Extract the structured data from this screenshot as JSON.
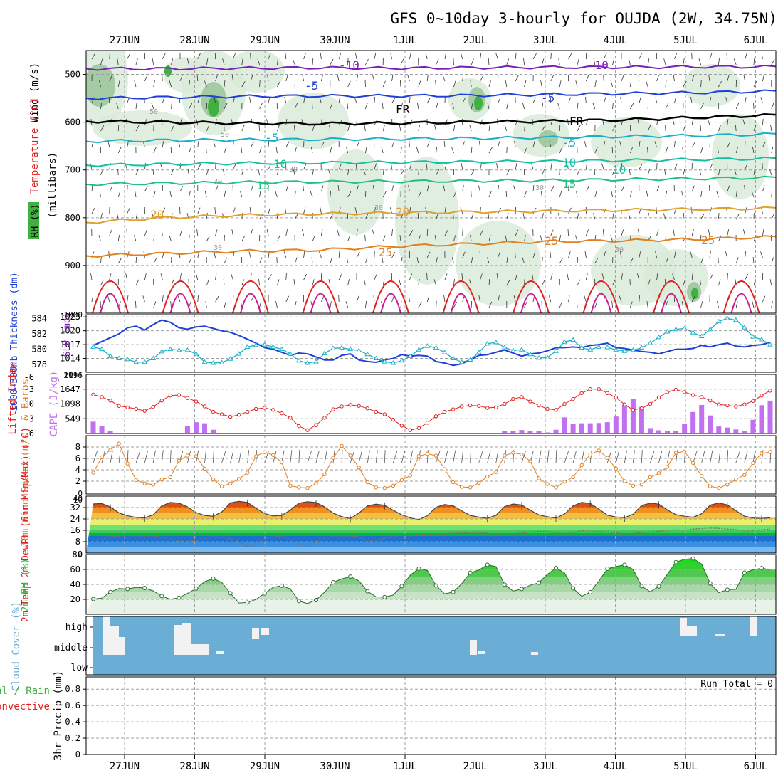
{
  "title": "GFS 0~10day 3-hourly for OUJDA (2W, 34.75N)",
  "dates": [
    "27JUN",
    "28JUN",
    "29JUN",
    "30JUN",
    "1JUL",
    "2JUL",
    "3JUL",
    "4JUL",
    "5JUL",
    "6JUL"
  ],
  "colors": {
    "axis": "#000000",
    "grid": "#a0a0a0",
    "purple": "#7a1fb4",
    "blue": "#1e3fd8",
    "cyan": "#1ab0c8",
    "teal": "#14c0a0",
    "orange": "#e08020",
    "red": "#e02020",
    "magenta": "#d01890",
    "gold": "#e0a030",
    "rhGreen": "#40b040",
    "sky": "#6aaed6",
    "cape": "#c070f0"
  },
  "chart_data": [
    {
      "type": "line",
      "panel": "upper-air",
      "ylabel_wind": "Wind (m/s)",
      "ylabel_temp": "Temperature (°C)",
      "ylabel_rh": "RH (%)",
      "ylabel_p": "(millibars)",
      "yticks": [
        500,
        600,
        700,
        800,
        900
      ],
      "ylim": [
        1000,
        450
      ],
      "contour_labels": [
        "-10",
        "-10",
        "-5",
        "-5",
        "FR",
        "FR",
        "-5",
        "-5",
        "10",
        "10",
        "10",
        "15",
        "15",
        "20",
        "20",
        "25",
        "25",
        "25",
        "30",
        "30",
        "30",
        "30",
        "30",
        "50",
        "50",
        "50",
        "30"
      ],
      "isotherms": [
        {
          "name": "-10",
          "p": [
            488,
            488,
            487,
            486,
            487,
            486,
            485,
            485,
            484,
            484
          ]
        },
        {
          "name": "-5",
          "p": [
            550,
            548,
            546,
            545,
            545,
            544,
            542,
            540,
            538,
            535
          ]
        },
        {
          "name": "FR",
          "p": [
            598,
            600,
            602,
            603,
            602,
            600,
            598,
            595,
            590,
            585
          ]
        },
        {
          "name": "5",
          "p": [
            640,
            638,
            637,
            636,
            635,
            634,
            632,
            630,
            628,
            625
          ]
        },
        {
          "name": "10",
          "p": [
            690,
            688,
            686,
            685,
            684,
            683,
            682,
            680,
            678,
            676
          ]
        },
        {
          "name": "15",
          "p": [
            730,
            728,
            726,
            725,
            724,
            723,
            722,
            720,
            718,
            716
          ]
        },
        {
          "name": "20",
          "p": [
            810,
            800,
            795,
            792,
            790,
            788,
            786,
            784,
            782,
            780
          ]
        },
        {
          "name": "25",
          "p": [
            880,
            875,
            870,
            868,
            860,
            855,
            850,
            848,
            845,
            840
          ]
        }
      ]
    },
    {
      "type": "line",
      "panel": "thickness-slp",
      "ylabel_thk": "1000~500mb Thickness (dm)",
      "ylabel_slp": "SLP (mb)",
      "yticks_thk": [
        578,
        580,
        582,
        584
      ],
      "yticks_slp": [
        1014,
        1017,
        1020,
        1023
      ],
      "ylim_thk": [
        577,
        584.5
      ],
      "ylim_slp": [
        1011,
        1023.5
      ],
      "extra_ticks": [
        "1000",
        "1011"
      ],
      "series": [
        {
          "name": "Thickness",
          "values": [
            580.5,
            581,
            581.5,
            582,
            582.8,
            583,
            582.5,
            583.2,
            583.8,
            583.5,
            582.8,
            582.6,
            582.9,
            583,
            582.7,
            582.4,
            582.2,
            581.8,
            581.3,
            580.8,
            580.2,
            580,
            579.6,
            579.2,
            579.5,
            579.4,
            579,
            578.6,
            578.6,
            579.2,
            579.4,
            578.6,
            578.4,
            578.3,
            578.6,
            578.8,
            579.3,
            579.1,
            579.2,
            579.1,
            578.4,
            578.2,
            577.9,
            578.1,
            578.6,
            579.2,
            579.3,
            579.6,
            579.9,
            579.5,
            579.1,
            579.4,
            579.5,
            579.8,
            580.2,
            580.2,
            580.3,
            580.2,
            580.5,
            580.6,
            580.8,
            580.2,
            580.1,
            579.9,
            579.7,
            579.6,
            579.4,
            579.7,
            580,
            580,
            580.1,
            580.5,
            580.3,
            580.6,
            580.8,
            580.4,
            580.3,
            580.5,
            580.6,
            580.9
          ]
        },
        {
          "name": "SLP",
          "values": [
            1016.5,
            1016,
            1014.5,
            1014,
            1013.8,
            1013.2,
            1013.2,
            1014,
            1015.5,
            1016,
            1015.8,
            1015.8,
            1015,
            1013.2,
            1013,
            1013.1,
            1013.9,
            1015,
            1016.5,
            1016.9,
            1017,
            1016.5,
            1016,
            1015,
            1013.5,
            1013,
            1013.3,
            1015.1,
            1016.2,
            1016.3,
            1016,
            1015.7,
            1014.9,
            1014,
            1013.3,
            1013,
            1013.5,
            1014.5,
            1015.9,
            1016.7,
            1016.3,
            1015.3,
            1014,
            1013.2,
            1013.7,
            1015.3,
            1017.2,
            1017.5,
            1016.4,
            1015.7,
            1015.9,
            1014.9,
            1014.1,
            1014.2,
            1015.6,
            1017.6,
            1018,
            1016.3,
            1015.9,
            1016.5,
            1016.4,
            1015.9,
            1015.6,
            1015.8,
            1016.3,
            1017.3,
            1018.6,
            1019.8,
            1020.3,
            1020.5,
            1019.6,
            1018.8,
            1020.3,
            1022,
            1022.7,
            1022.3,
            1020.7,
            1018.7,
            1018.1,
            1017
          ]
        }
      ]
    },
    {
      "type": "bar",
      "panel": "li-cape",
      "ylabel_li": "Lifted Index",
      "ylabel_cape": "CAPE (J/kg)",
      "yticks_li": [
        -3,
        0,
        3,
        6
      ],
      "yticks_cape": [
        549,
        1098,
        1647
      ],
      "extra_ticks": [
        "-6",
        "2196"
      ],
      "ylim_li": [
        6,
        -6
      ],
      "ylim_cape": [
        0,
        2196
      ],
      "series": [
        {
          "name": "Lifted Index",
          "values": [
            -1.9,
            -1.4,
            -0.7,
            0.4,
            0.7,
            1,
            1.4,
            0.6,
            -0.7,
            -1.7,
            -1.8,
            -1.2,
            -0.5,
            0.5,
            1.6,
            2.1,
            2.6,
            2.2,
            1.6,
            1,
            0.8,
            1.2,
            1.9,
            2.8,
            4.5,
            5.3,
            4.3,
            2.8,
            1.1,
            0.5,
            0.2,
            0.4,
            0.9,
            1.6,
            2.1,
            3.2,
            4.4,
            5.3,
            4.9,
            3.8,
            2.5,
            1.6,
            1.1,
            0.5,
            0.3,
            0.4,
            0.8,
            0.7,
            0,
            -1,
            -1.4,
            -0.5,
            0.3,
            1,
            1.2,
            0,
            -1,
            -2.2,
            -3,
            -3,
            -2.2,
            -1.3,
            0.1,
            1.2,
            0.9,
            0,
            -1.3,
            -2.4,
            -2.9,
            -2.4,
            -1.8,
            -1.4,
            -0.7,
            0.1,
            0.3,
            0.5,
            0.1,
            -0.6,
            -1.7,
            -2.7
          ]
        },
        {
          "name": "CAPE",
          "values": [
            440,
            290,
            100,
            0,
            0,
            0,
            0,
            0,
            0,
            0,
            0,
            280,
            420,
            380,
            140,
            0,
            0,
            0,
            0,
            0,
            0,
            0,
            0,
            0,
            0,
            0,
            0,
            0,
            0,
            0,
            0,
            0,
            0,
            0,
            0,
            0,
            0,
            0,
            0,
            0,
            0,
            0,
            0,
            0,
            0,
            0,
            0,
            0,
            80,
            90,
            130,
            90,
            80,
            40,
            140,
            600,
            350,
            380,
            380,
            390,
            420,
            630,
            1060,
            1280,
            990,
            200,
            120,
            90,
            90,
            370,
            800,
            1060,
            670,
            260,
            220,
            150,
            100,
            510,
            1050,
            1220
          ]
        }
      ]
    },
    {
      "type": "line",
      "panel": "wind10m",
      "ylabel": "10m Wind Speed (m/s) & Barbs",
      "yticks": [
        2,
        4,
        6,
        8
      ],
      "extra_ticks": [
        "0",
        "10"
      ],
      "ylim": [
        0,
        9
      ],
      "series": [
        {
          "name": "Speed",
          "values": [
            3.5,
            6.2,
            7.5,
            8.6,
            5.1,
            2.2,
            1.6,
            1.4,
            2.3,
            2.7,
            5.6,
            6.5,
            6.4,
            4.2,
            2.3,
            1.1,
            1.6,
            2.4,
            3.5,
            6.4,
            7.1,
            6.6,
            5.3,
            1.2,
            0.9,
            0.8,
            1.6,
            3.2,
            6.1,
            8.2,
            6.5,
            4.4,
            1.8,
            0.9,
            0.8,
            1.2,
            2.2,
            3,
            6.4,
            6.8,
            6.5,
            4.1,
            1.8,
            1,
            0.9,
            1.7,
            2.8,
            3.6,
            6.5,
            7,
            6.7,
            5.5,
            2.5,
            1.5,
            0.9,
            1.9,
            2.7,
            4.8,
            6.7,
            7.4,
            6.1,
            4.2,
            2,
            1.2,
            1.4,
            2.7,
            3.4,
            4.5,
            7,
            7.2,
            5.2,
            2.9,
            1.1,
            0.8,
            1.4,
            2.3,
            3.1,
            5.2,
            6.9,
            7.1
          ]
        }
      ]
    },
    {
      "type": "area",
      "panel": "temp-dew",
      "ylabel": "2m Temp 2m DewPt (6hr Min/Max) (°C)",
      "yticks": [
        8,
        16,
        24,
        32
      ],
      "extra_ticks": [
        "0",
        "40"
      ],
      "ylim": [
        0,
        40
      ],
      "series": [
        {
          "name": "Temp",
          "values": [
            34.5,
            34.8,
            32.4,
            28.3,
            26.2,
            25.1,
            24.8,
            26.9,
            33.2,
            35.6,
            35.1,
            32.5,
            28.5,
            26.4,
            25.9,
            28.9,
            35.3,
            36.3,
            35.6,
            31.5,
            27.8,
            26.1,
            26.5,
            30.2,
            35.1,
            36.1,
            35.5,
            32.5,
            28.1,
            25.6,
            24.3,
            28.1,
            33.2,
            34.4,
            33.6,
            30.2,
            26.9,
            24.7,
            23.6,
            26.3,
            32.2,
            34.1,
            33.2,
            29.7,
            26.4,
            25.3,
            24.4,
            26.6,
            32.7,
            34.5,
            33.8,
            30.2,
            26.8,
            25.6,
            24.6,
            27.5,
            33.2,
            35.6,
            34.9,
            31,
            26.6,
            25.4,
            24.9,
            27.3,
            33.5,
            35.1,
            34.4,
            30.3,
            27,
            25.9,
            25.2,
            27.6,
            33.7,
            35.2,
            33.9,
            29.9,
            25.9,
            24.7,
            24.4,
            24.8
          ]
        },
        {
          "name": "DewPt",
          "values": [
            9.2,
            9.5,
            11.5,
            11.8,
            10.9,
            11.4,
            11.6,
            12.3,
            11.1,
            9.9,
            8.5,
            8.4,
            8.8,
            10.3,
            11.3,
            11.2,
            10.2,
            7.9,
            4.7,
            6.8,
            10.2,
            11.4,
            11.7,
            9.7,
            6.6,
            5.2,
            8.2,
            10.2,
            11.5,
            11.2,
            12.1,
            11.4,
            8.8,
            8.8,
            10.6,
            12,
            12.3,
            12.1,
            13.7,
            12.8,
            12.9,
            13.2,
            14.4,
            14.4,
            14.3,
            14,
            14.2,
            13.2,
            12.6,
            13.6,
            14,
            14.9,
            15.2,
            15.2,
            14.1,
            13.5,
            14.5,
            15.9,
            15.6,
            15.1,
            14.8,
            14.2,
            13.4,
            13.8,
            14.6,
            14.7,
            15.3,
            15.9,
            16.3,
            16,
            16.9,
            17.2,
            17.6,
            17.4,
            16.9,
            16.4,
            15.6,
            16,
            16.4,
            16.8
          ]
        }
      ]
    },
    {
      "type": "area",
      "panel": "rh2m",
      "ylabel": "2m RH (%)",
      "yticks": [
        20,
        40,
        60
      ],
      "extra_ticks": [
        "80"
      ],
      "ylim": [
        0,
        80
      ],
      "series": [
        {
          "name": "RH",
          "values": [
            20.4,
            21.6,
            29.8,
            34.6,
            33.9,
            36.1,
            35.2,
            31.3,
            24.4,
            20.1,
            22.1,
            27.9,
            34.5,
            43.7,
            47.7,
            42.8,
            28.2,
            15.1,
            15.8,
            20,
            27.9,
            36.1,
            38.3,
            34,
            17.7,
            14.5,
            19.1,
            29.6,
            42.8,
            47.4,
            50.5,
            44.9,
            30.8,
            23.4,
            23,
            25.7,
            37.6,
            52.4,
            61.1,
            58.6,
            38.6,
            27.4,
            29.8,
            40.9,
            55.7,
            59.1,
            66.3,
            63.8,
            39.8,
            31.1,
            33.9,
            38.9,
            42.3,
            53.4,
            62.1,
            55.3,
            34.8,
            24.1,
            29.6,
            44.5,
            60.9,
            64,
            66.2,
            60.1,
            37.7,
            30.2,
            37.4,
            53.5,
            69.8,
            73.6,
            74.7,
            67.1,
            41.2,
            29,
            33,
            33.5,
            55.7,
            59.4,
            61.8,
            59.6
          ]
        }
      ]
    },
    {
      "type": "heatmap",
      "panel": "cloud",
      "ylabel": "Cloud Cover (%)",
      "yticks": [
        "high",
        "middle",
        "low"
      ]
    },
    {
      "type": "bar",
      "panel": "precip",
      "ylabel": "3hr Precip (mm)",
      "ylabel_total": "Total / Rain",
      "ylabel_conv": "Convective",
      "yticks": [
        0,
        0.2,
        0.4,
        0.6,
        0.8
      ],
      "ylim": [
        0,
        0.95
      ],
      "run_total": "Run Total = 0",
      "series": [
        {
          "name": "Precip",
          "values": []
        }
      ]
    }
  ]
}
